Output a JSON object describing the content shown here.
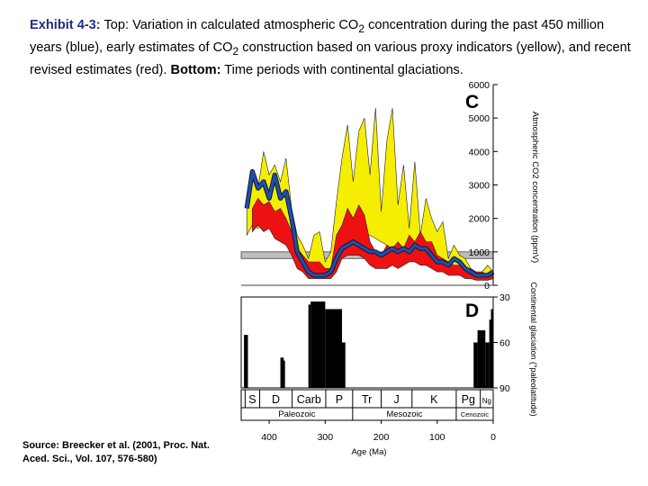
{
  "caption": {
    "lead": "Exhibit 4-3:",
    "top_label": "Top",
    "part1": ": Variation in calculated atmospheric CO",
    "sub1": "2",
    "part2": " concentration during the past 450 million years (blue), early estimates of CO",
    "sub2": "2",
    "part3": " construction based on various proxy indicators (yellow), and recent revised estimates (red). ",
    "bottom_label": "Bottom:",
    "part4": " Time periods with continental glaciations."
  },
  "source": "Source: Breecker et al. (2001, Proc. Nat. Aced. Sci., Vol. 107, 576-580)",
  "colors": {
    "blue": "#1f4fa8",
    "yellow": "#f6ee00",
    "red": "#ee1111",
    "grey": "#bdbdbd",
    "black": "#000000"
  },
  "chart_data": [
    {
      "type": "area",
      "panel_label": "C",
      "ylabel": "Atmospheric CO2 concentration (ppmV)",
      "xlim": [
        450,
        0
      ],
      "ylim": [
        0,
        6000
      ],
      "y_ticks": [
        0,
        1000,
        2000,
        3000,
        4000,
        5000,
        6000
      ],
      "series": [
        {
          "color": "yellow",
          "x": [
            440,
            430,
            420,
            410,
            400,
            390,
            380,
            370,
            360,
            350,
            340,
            330,
            320,
            310,
            300,
            290,
            280,
            270,
            260,
            250,
            240,
            230,
            220,
            210,
            200,
            190,
            180,
            170,
            160,
            150,
            140,
            130,
            120,
            110,
            100,
            90,
            80,
            70,
            60,
            50,
            40,
            30,
            20,
            10,
            0
          ],
          "upper": [
            2500,
            3200,
            2900,
            4000,
            3300,
            3600,
            3100,
            3800,
            2300,
            1500,
            1200,
            800,
            1500,
            1600,
            700,
            1000,
            2500,
            3800,
            4800,
            3100,
            4600,
            5000,
            3300,
            5300,
            2200,
            4300,
            5300,
            2400,
            3600,
            1700,
            3700,
            1500,
            2600,
            2000,
            1600,
            1900,
            800,
            1200,
            900,
            800,
            500,
            300,
            400,
            600,
            400
          ],
          "lower": [
            1500,
            1800,
            1700,
            1900,
            1800,
            1900,
            1700,
            1500,
            1100,
            800,
            500,
            300,
            300,
            300,
            300,
            300,
            700,
            1000,
            1200,
            1300,
            1300,
            1400,
            1500,
            1400,
            1300,
            1200,
            1100,
            1000,
            900,
            800,
            700,
            700,
            600,
            600,
            500,
            500,
            400,
            400,
            300,
            300,
            250,
            250,
            250,
            250,
            250
          ]
        },
        {
          "color": "red",
          "x": [
            430,
            420,
            410,
            400,
            390,
            380,
            370,
            360,
            350,
            340,
            330,
            320,
            310,
            300,
            290,
            280,
            270,
            260,
            250,
            240,
            230,
            220,
            210,
            200,
            190,
            180,
            170,
            160,
            150,
            140,
            130,
            120,
            110,
            100,
            90,
            80,
            70,
            60,
            50,
            40,
            30,
            20,
            10,
            0
          ],
          "upper": [
            2300,
            2600,
            2400,
            2500,
            2200,
            2300,
            2000,
            1600,
            1100,
            900,
            700,
            700,
            700,
            500,
            500,
            1500,
            1800,
            2300,
            2000,
            2400,
            2100,
            1300,
            1000,
            900,
            1200,
            1100,
            1300,
            1100,
            1500,
            1300,
            1600,
            1300,
            1300,
            900,
            800,
            700,
            600,
            600,
            500,
            500,
            400,
            400,
            300,
            400
          ],
          "lower": [
            1600,
            1800,
            1600,
            1700,
            1400,
            1300,
            1200,
            900,
            500,
            400,
            200,
            200,
            200,
            200,
            200,
            400,
            800,
            900,
            900,
            900,
            800,
            600,
            500,
            500,
            500,
            600,
            500,
            600,
            700,
            700,
            600,
            600,
            500,
            400,
            400,
            300,
            300,
            300,
            200,
            200,
            150,
            150,
            150,
            200
          ]
        },
        {
          "color": "blue",
          "x": [
            440,
            430,
            420,
            410,
            400,
            390,
            380,
            370,
            360,
            350,
            340,
            330,
            320,
            310,
            300,
            290,
            280,
            270,
            260,
            250,
            240,
            230,
            220,
            210,
            200,
            190,
            180,
            170,
            160,
            150,
            140,
            130,
            120,
            110,
            100,
            90,
            80,
            70,
            60,
            50,
            40,
            30,
            20,
            10,
            0
          ],
          "values": [
            2300,
            3400,
            2900,
            3100,
            2600,
            3300,
            2600,
            2800,
            2000,
            1000,
            700,
            400,
            300,
            300,
            300,
            400,
            800,
            1100,
            1200,
            1300,
            1200,
            1100,
            1000,
            1000,
            900,
            1000,
            1100,
            1000,
            1100,
            1000,
            1200,
            1100,
            1100,
            900,
            700,
            700,
            600,
            800,
            700,
            500,
            400,
            300,
            300,
            300,
            400
          ]
        }
      ],
      "grey_band": [
        800,
        1000
      ]
    },
    {
      "type": "bar",
      "panel_label": "D",
      "ylabel": "Continental glaciation (°paleolatitude)",
      "ylim": [
        30,
        90
      ],
      "y_ticks": [
        30,
        60,
        90
      ],
      "xlabel": "Age (Ma)",
      "x_ticks": [
        400,
        300,
        200,
        100,
        0
      ],
      "glaciations": [
        {
          "start": 445,
          "end": 438,
          "top": 55
        },
        {
          "start": 442,
          "end": 440,
          "top": 68
        },
        {
          "start": 380,
          "end": 374,
          "top": 70
        },
        {
          "start": 375,
          "end": 373,
          "top": 72
        },
        {
          "start": 330,
          "end": 326,
          "top": 35
        },
        {
          "start": 326,
          "end": 300,
          "top": 33
        },
        {
          "start": 318,
          "end": 312,
          "top": 45
        },
        {
          "start": 300,
          "end": 270,
          "top": 38
        },
        {
          "start": 290,
          "end": 280,
          "top": 43
        },
        {
          "start": 270,
          "end": 264,
          "top": 60
        },
        {
          "start": 35,
          "end": 28,
          "top": 60
        },
        {
          "start": 28,
          "end": 14,
          "top": 52
        },
        {
          "start": 14,
          "end": 7,
          "top": 60
        },
        {
          "start": 7,
          "end": 4,
          "top": 45
        },
        {
          "start": 4,
          "end": 0,
          "top": 38
        }
      ],
      "periods": [
        {
          "label": "S",
          "start": 443,
          "end": 417
        },
        {
          "label": "D",
          "start": 417,
          "end": 359
        },
        {
          "label": "Carb",
          "start": 359,
          "end": 299
        },
        {
          "label": "P",
          "start": 299,
          "end": 251
        },
        {
          "label": "Tr",
          "start": 251,
          "end": 200
        },
        {
          "label": "J",
          "start": 200,
          "end": 145
        },
        {
          "label": "K",
          "start": 145,
          "end": 66
        },
        {
          "label": "Pg",
          "start": 66,
          "end": 23
        },
        {
          "label": "Ng",
          "start": 23,
          "end": 0
        }
      ],
      "eras": [
        {
          "label": "Paleozoic",
          "start": 450,
          "end": 251
        },
        {
          "label": "Mesozoic",
          "start": 251,
          "end": 66
        },
        {
          "label": "Cenozoic",
          "start": 66,
          "end": 0
        }
      ]
    }
  ]
}
